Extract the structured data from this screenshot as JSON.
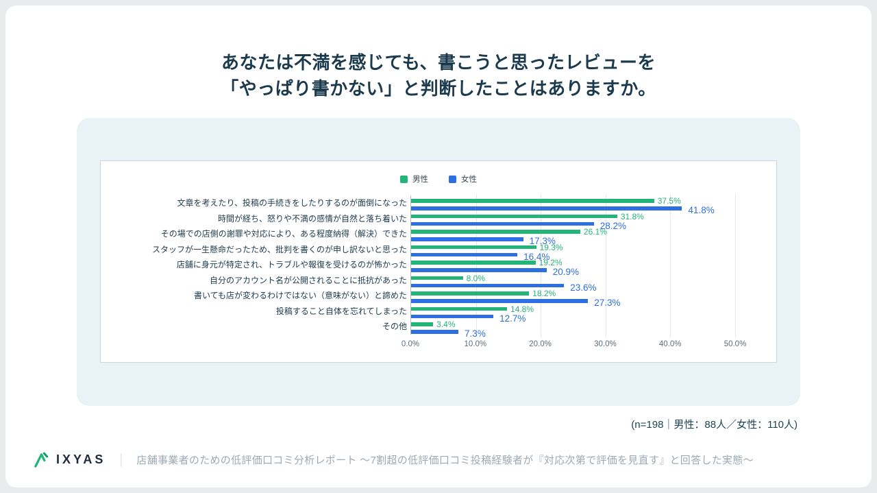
{
  "title": {
    "line1": "あなたは不満を感じても、書こうと思ったレビューを",
    "line2": "「やっぱり書かない」と判断したことはありますか。"
  },
  "chart_data": {
    "type": "bar",
    "orientation": "horizontal",
    "grid": true,
    "legend_position": "top-center",
    "categories": [
      "文章を考えたり、投稿の手続きをしたりするのが面倒になった",
      "時間が経ち、怒りや不満の感情が自然と落ち着いた",
      "その場での店側の謝罪や対応により、ある程度納得（解決）できた",
      "スタッフが一生懸命だったため、批判を書くのが申し訳ないと思った",
      "店舗に身元が特定され、トラブルや報復を受けるのが怖かった",
      "自分のアカウント名が公開されることに抵抗があった",
      "書いても店が変わるわけではない（意味がない）と諦めた",
      "投稿すること自体を忘れてしまった",
      "その他"
    ],
    "series": [
      {
        "name": "男性",
        "color": "#23b478",
        "values": [
          37.5,
          31.8,
          26.1,
          19.3,
          19.2,
          8.0,
          18.2,
          14.8,
          3.4
        ]
      },
      {
        "name": "女性",
        "color": "#2d6ee0",
        "values": [
          41.8,
          28.2,
          17.3,
          16.4,
          20.9,
          23.6,
          27.3,
          12.7,
          7.3
        ]
      }
    ],
    "xlim": [
      0,
      50
    ],
    "x_ticks": [
      "0.0%",
      "10.0%",
      "20.0%",
      "30.0%",
      "40.0%",
      "50.0%"
    ],
    "value_suffix": "%"
  },
  "sample_note": "(n=198｜男性：88人／女性：110人)",
  "footer": {
    "brand": "IXYAS",
    "divider": "｜",
    "tagline": "店舗事業者のための低評価口コミ分析レポート ～7割超の低評価口コミ投稿経験者が『対応次第で評価を見直す』と回答した実態～"
  },
  "colors": {
    "male": "#23b478",
    "female": "#2d6ee0",
    "panel_background": "#e9f3f7",
    "title_text": "#1b3a4d",
    "footer_tagline_text": "#9caab4"
  }
}
